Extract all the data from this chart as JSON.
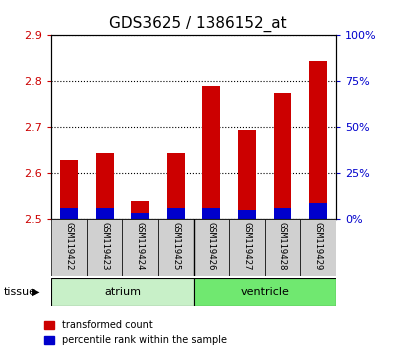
{
  "title": "GDS3625 / 1386152_at",
  "samples": [
    "GSM119422",
    "GSM119423",
    "GSM119424",
    "GSM119425",
    "GSM119426",
    "GSM119427",
    "GSM119428",
    "GSM119429"
  ],
  "red_values": [
    2.63,
    2.645,
    2.54,
    2.645,
    2.79,
    2.695,
    2.775,
    2.845
  ],
  "blue_values": [
    2.525,
    2.525,
    2.515,
    2.525,
    2.525,
    2.52,
    2.525,
    2.535
  ],
  "y_min": 2.5,
  "y_max": 2.9,
  "y_ticks": [
    2.5,
    2.6,
    2.7,
    2.8,
    2.9
  ],
  "right_y_ticks": [
    0,
    25,
    50,
    75,
    100
  ],
  "right_y_labels": [
    "0%",
    "25%",
    "50%",
    "75%",
    "100%"
  ],
  "tissue_groups": [
    {
      "label": "atrium",
      "start": 0,
      "end": 3,
      "color": "#c8f0c8"
    },
    {
      "label": "ventricle",
      "start": 4,
      "end": 7,
      "color": "#70e870"
    }
  ],
  "bar_width": 0.5,
  "red_color": "#cc0000",
  "blue_color": "#0000cc",
  "plot_bg": "#ffffff",
  "label_area_bg": "#d0d0d0",
  "left_tick_color": "#cc0000",
  "right_tick_color": "#0000cc",
  "title_fontsize": 11,
  "tick_fontsize": 8
}
